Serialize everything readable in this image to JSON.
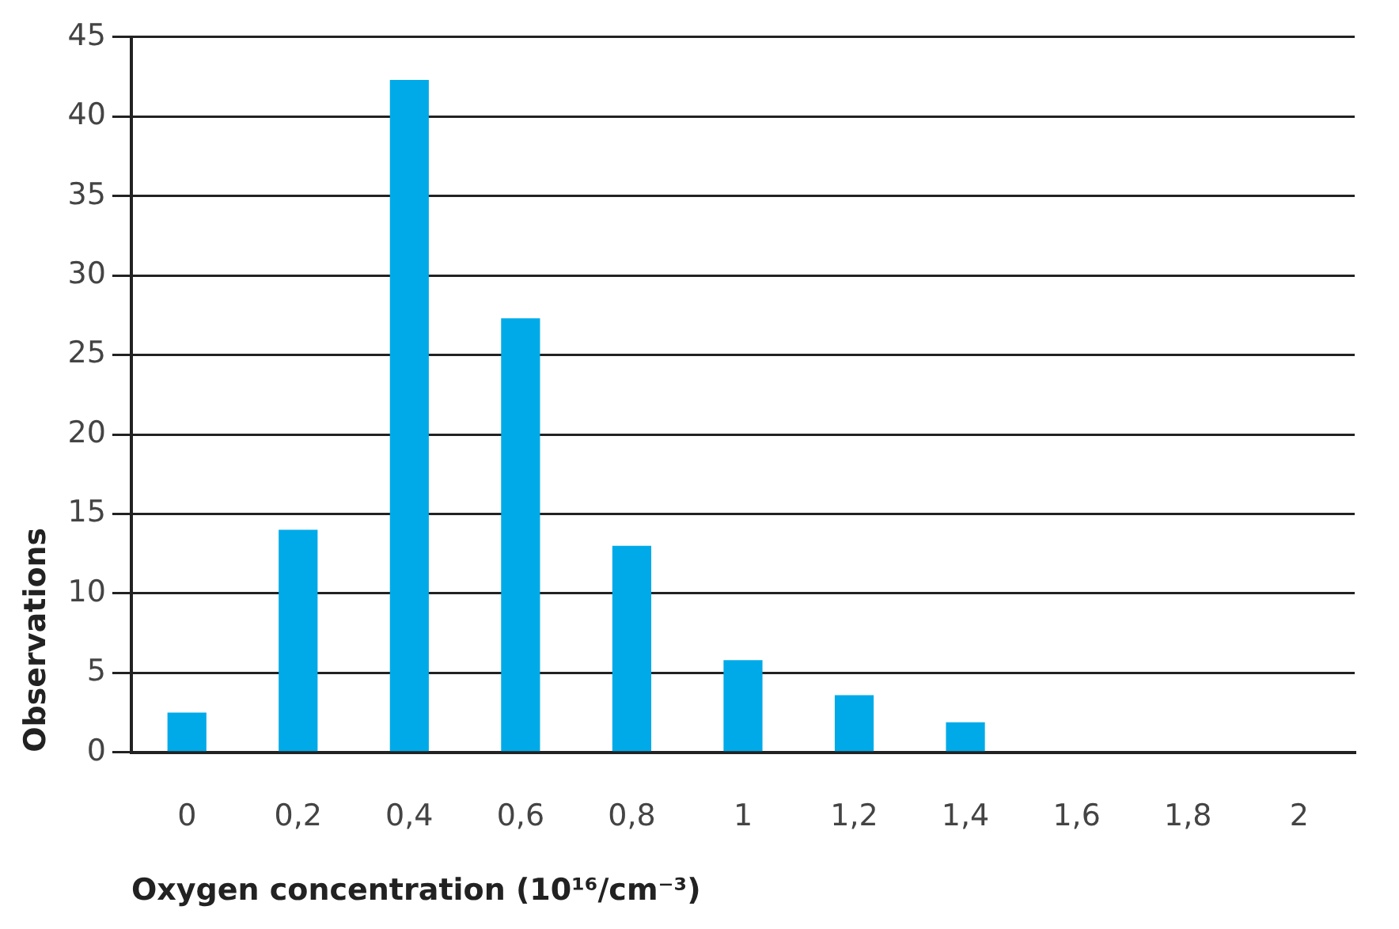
{
  "chart_data": {
    "type": "bar",
    "xlabel": "Oxygen concentration (10¹⁶/cm⁻³)",
    "ylabel": "Observations",
    "categories": [
      "0",
      "0,2",
      "0,4",
      "0,6",
      "0,8",
      "1",
      "1,2",
      "1,4",
      "1,6",
      "1,8",
      "2"
    ],
    "values": [
      2.5,
      14,
      42.3,
      27.3,
      13,
      5.8,
      3.6,
      1.9,
      0,
      0,
      0
    ],
    "color": "#00aae8",
    "ylim": [
      0,
      45
    ],
    "yticks": [
      0,
      5,
      10,
      15,
      20,
      25,
      30,
      35,
      40,
      45
    ],
    "grid": "y",
    "legend": false
  }
}
